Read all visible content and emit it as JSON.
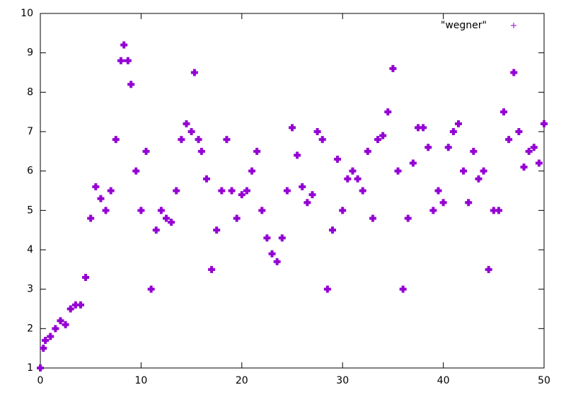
{
  "chart_data": {
    "type": "scatter",
    "x": [
      0,
      0.3,
      0.5,
      1,
      1.5,
      2,
      2.5,
      3,
      3.5,
      4,
      4.5,
      5,
      5.5,
      6,
      6.5,
      7,
      7.5,
      8,
      8.3,
      8.7,
      9,
      9.5,
      10,
      10.5,
      11,
      11.5,
      12,
      12.5,
      13,
      13.5,
      14,
      14.5,
      15,
      15.3,
      15.7,
      16,
      16.5,
      17,
      17.5,
      18,
      18.5,
      19,
      19.5,
      20,
      20.5,
      21,
      21.5,
      22,
      22.5,
      23,
      23.5,
      24,
      24.5,
      25,
      25.5,
      26,
      26.5,
      27,
      27.5,
      28,
      28.5,
      29,
      29.5,
      30,
      30.5,
      31,
      31.5,
      32,
      32.5,
      33,
      33.5,
      34,
      34.5,
      35,
      35.5,
      36,
      36.5,
      37,
      37.5,
      38,
      38.5,
      39,
      39.5,
      40,
      40.5,
      41,
      41.5,
      42,
      42.5,
      43,
      43.5,
      44,
      44.5,
      45,
      45.5,
      46,
      46.5,
      47,
      47.5,
      48,
      48.5,
      49,
      49.5,
      50
    ],
    "series": [
      {
        "name": "\"wegner\"",
        "color": "#9400d3",
        "values": [
          1.0,
          1.5,
          1.7,
          1.8,
          2.0,
          2.2,
          2.1,
          2.5,
          2.6,
          2.6,
          3.3,
          4.8,
          5.6,
          5.3,
          5.0,
          5.5,
          6.8,
          8.8,
          9.2,
          8.8,
          8.2,
          6.0,
          5.0,
          6.5,
          3.0,
          4.5,
          5.0,
          4.8,
          4.7,
          5.5,
          6.8,
          7.2,
          7.0,
          8.5,
          6.8,
          6.5,
          5.8,
          3.5,
          4.5,
          5.5,
          6.8,
          5.5,
          4.8,
          5.4,
          5.5,
          6.0,
          6.5,
          5.0,
          4.3,
          3.9,
          3.7,
          4.3,
          5.5,
          7.1,
          6.4,
          5.6,
          5.2,
          5.4,
          7.0,
          6.8,
          3.0,
          4.5,
          6.3,
          5.0,
          5.8,
          6.0,
          5.8,
          5.5,
          6.5,
          4.8,
          6.8,
          6.9,
          7.5,
          8.6,
          6.0,
          3.0,
          4.8,
          6.2,
          7.1,
          7.1,
          6.6,
          5.0,
          5.5,
          5.2,
          6.6,
          7.0,
          7.2,
          6.0,
          5.2,
          6.5,
          5.8,
          6.0,
          3.5,
          5.0,
          5.0,
          7.5,
          6.8,
          8.5,
          7.0,
          6.1,
          6.5,
          6.6,
          6.2,
          7.2
        ]
      }
    ],
    "xlim": [
      0,
      50
    ],
    "ylim": [
      1,
      10
    ],
    "xticks": [
      0,
      10,
      20,
      30,
      40,
      50
    ],
    "yticks": [
      1,
      2,
      3,
      4,
      5,
      6,
      7,
      8,
      9,
      10
    ],
    "legend": "upper right"
  }
}
